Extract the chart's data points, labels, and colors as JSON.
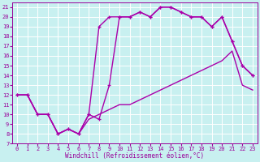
{
  "xlabel": "Windchill (Refroidissement éolien,°C)",
  "bg_color": "#c8f0f0",
  "line_color": "#aa00aa",
  "grid_color": "#ffffff",
  "xlim": [
    -0.5,
    23.5
  ],
  "ylim": [
    7,
    21.5
  ],
  "xticks": [
    0,
    1,
    2,
    3,
    4,
    5,
    6,
    7,
    8,
    9,
    10,
    11,
    12,
    13,
    14,
    15,
    16,
    17,
    18,
    19,
    20,
    21,
    22,
    23
  ],
  "yticks": [
    7,
    8,
    9,
    10,
    11,
    12,
    13,
    14,
    15,
    16,
    17,
    18,
    19,
    20,
    21
  ],
  "series": [
    {
      "x": [
        0,
        1,
        2,
        3,
        4,
        5,
        6,
        7,
        8,
        9,
        10,
        11,
        12,
        13,
        14,
        15,
        16,
        17,
        18,
        19,
        20,
        21,
        22,
        23
      ],
      "y": [
        12,
        12,
        10,
        10,
        8,
        8.5,
        8,
        9.5,
        10,
        10.5,
        11,
        11,
        11.5,
        12,
        12.5,
        13,
        13.5,
        14,
        14.5,
        15,
        15.5,
        16.5,
        13,
        12.5
      ],
      "marker": false,
      "lw": 1.0
    },
    {
      "x": [
        0,
        1,
        2,
        3,
        4,
        5,
        6,
        7,
        8,
        9,
        10,
        11,
        12,
        13,
        14,
        15,
        16,
        17,
        18,
        19,
        20,
        21,
        22,
        23
      ],
      "y": [
        12,
        12,
        10,
        10,
        8,
        8.5,
        8,
        10,
        9.5,
        13,
        20,
        20,
        20.5,
        20,
        21,
        21,
        20.5,
        20,
        20,
        19,
        20,
        17.5,
        15,
        14
      ],
      "marker": true,
      "lw": 1.0
    },
    {
      "x": [
        0,
        1,
        2,
        3,
        4,
        5,
        6,
        7,
        8,
        9,
        10,
        11,
        12,
        13,
        14,
        15,
        16,
        17,
        18,
        19,
        20,
        21,
        22,
        23
      ],
      "y": [
        12,
        12,
        10,
        10,
        8,
        8.5,
        8,
        10,
        19,
        20,
        20,
        20,
        20.5,
        20,
        21,
        21,
        20.5,
        20,
        20,
        19,
        20,
        17.5,
        15,
        14
      ],
      "marker": true,
      "lw": 1.0
    }
  ]
}
